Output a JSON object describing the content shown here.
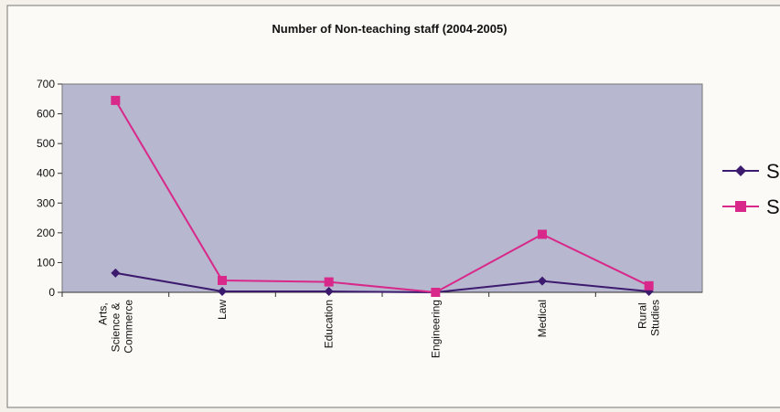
{
  "chart_data": {
    "type": "line",
    "title": "Number of Non-teaching staff (2004-2005)",
    "categories": [
      "Arts, Science & Commerce",
      "Law",
      "Education",
      "Engineering",
      "Medical",
      "Rural Studies"
    ],
    "series": [
      {
        "name": "S",
        "color": "#3c1a6e",
        "values": [
          65,
          3,
          3,
          0,
          38,
          3
        ]
      },
      {
        "name": "S",
        "color": "#d8288a",
        "values": [
          645,
          40,
          35,
          0,
          195,
          22
        ]
      }
    ],
    "ylim": [
      0,
      700
    ],
    "yticks": [
      0,
      100,
      200,
      300,
      400,
      500,
      600,
      700
    ],
    "legend": "right"
  }
}
